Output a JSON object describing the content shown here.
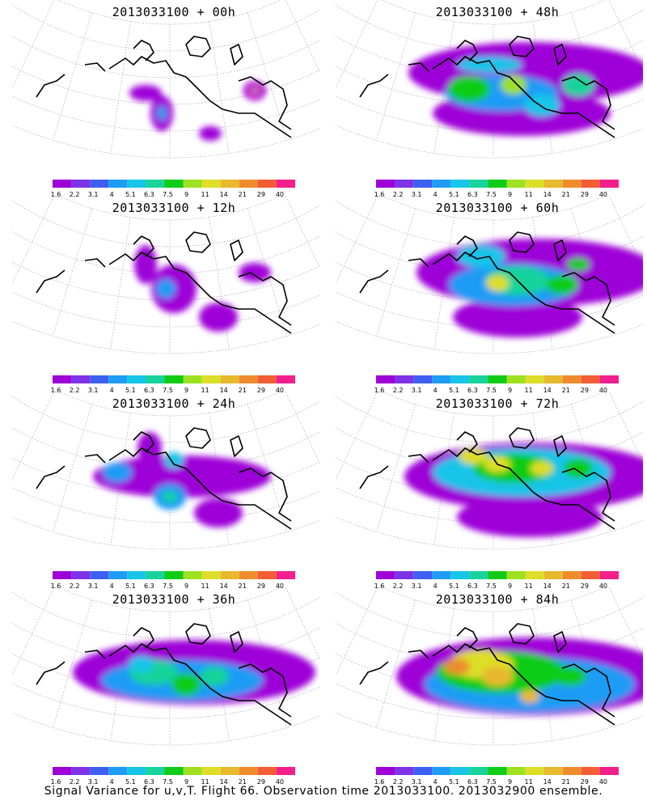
{
  "chart_data": {
    "type": "heatmap",
    "caption": "Signal Variance for u,v,T. Flight 66. Observation time 2013033100. 2013032900 ensemble.",
    "colorbar": {
      "ticks": [
        "1.6",
        "2.2",
        "3.1",
        "4",
        "5.1",
        "6.3",
        "7.5",
        "9",
        "11",
        "14",
        "21",
        "29",
        "40"
      ],
      "colors": [
        "#9e00d8",
        "#7f33e8",
        "#3f5ff2",
        "#1f9cf5",
        "#16c5e8",
        "#18d39b",
        "#10cc16",
        "#9ee022",
        "#ddde28",
        "#e8b82d",
        "#ee8c2d",
        "#f25d36",
        "#f21f8c"
      ]
    },
    "panels": [
      {
        "id": "p00",
        "title": "2013033100 + 00h",
        "lead_hours": 0,
        "coverage": "sparse"
      },
      {
        "id": "p48",
        "title": "2013033100 + 48h",
        "lead_hours": 48,
        "coverage": "broad"
      },
      {
        "id": "p12",
        "title": "2013033100 + 12h",
        "lead_hours": 12,
        "coverage": "sparse"
      },
      {
        "id": "p60",
        "title": "2013033100 + 60h",
        "lead_hours": 60,
        "coverage": "broad"
      },
      {
        "id": "p24",
        "title": "2013033100 + 24h",
        "lead_hours": 24,
        "coverage": "moderate"
      },
      {
        "id": "p72",
        "title": "2013033100 + 72h",
        "lead_hours": 72,
        "coverage": "broad"
      },
      {
        "id": "p36",
        "title": "2013033100 + 36h",
        "lead_hours": 36,
        "coverage": "moderate"
      },
      {
        "id": "p84",
        "title": "2013033100 + 84h",
        "lead_hours": 84,
        "coverage": "broad"
      }
    ]
  }
}
